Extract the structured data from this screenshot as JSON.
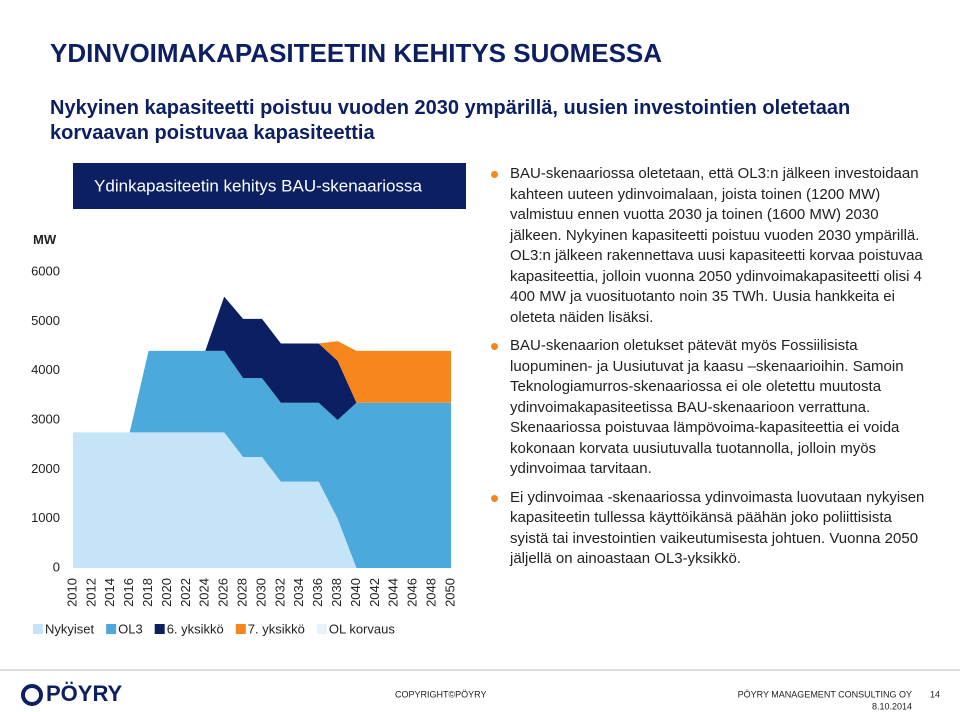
{
  "title": "YDINVOIMAKAPASITEETIN KEHITYS SUOMESSA",
  "subtitle": "Nykyinen kapasiteetti poistuu vuoden 2030 ympärillä, uusien investointien oletetaan korvaavan poistuvaa kapasiteettia",
  "chart_data": {
    "type": "area",
    "stacked": true,
    "title": "Ydinkapasiteetin kehitys BAU-skenaariossa",
    "y_label": "MW",
    "categories": [
      "2010",
      "2012",
      "2014",
      "2016",
      "2018",
      "2020",
      "2022",
      "2024",
      "2026",
      "2028",
      "2030",
      "2032",
      "2034",
      "2036",
      "2038",
      "2040",
      "2042",
      "2044",
      "2046",
      "2048",
      "2050"
    ],
    "series": [
      {
        "name": "Nykyiset",
        "color": "#c6e4f7",
        "values": [
          2750,
          2750,
          2750,
          2750,
          2750,
          2750,
          2750,
          2750,
          2750,
          2250,
          2250,
          1750,
          1750,
          1750,
          1000,
          0,
          0,
          0,
          0,
          0,
          0
        ]
      },
      {
        "name": "OL3",
        "color": "#4ba9db",
        "values": [
          0,
          0,
          0,
          0,
          1650,
          1650,
          1650,
          1650,
          1650,
          1600,
          1600,
          1600,
          1600,
          1600,
          2000,
          3350,
          3350,
          3350,
          3350,
          3350,
          3350
        ]
      },
      {
        "name": "6. yksikkö",
        "color": "#0c1f62",
        "values": [
          0,
          0,
          0,
          0,
          0,
          0,
          0,
          0,
          1100,
          1200,
          1200,
          1200,
          1200,
          1200,
          1200,
          0,
          0,
          0,
          0,
          0,
          0
        ]
      },
      {
        "name": "7. yksikkö",
        "color": "#f7861c",
        "values": [
          0,
          0,
          0,
          0,
          0,
          0,
          0,
          0,
          0,
          0,
          0,
          0,
          0,
          0,
          400,
          1050,
          1050,
          1050,
          1050,
          1050,
          1050
        ]
      },
      {
        "name": "OL korvaus",
        "color": "#e8f2fa",
        "values": [
          0,
          0,
          0,
          0,
          0,
          0,
          0,
          0,
          0,
          0,
          0,
          0,
          0,
          0,
          0,
          0,
          0,
          0,
          0,
          0,
          0
        ]
      }
    ],
    "ylim": [
      0,
      6000
    ],
    "yticks": [
      0,
      1000,
      2000,
      3000,
      4000,
      5000,
      6000
    ]
  },
  "bullets": [
    "BAU-skenaariossa oletetaan, että OL3:n jälkeen investoidaan kahteen uuteen ydinvoimalaan, joista toinen (1200 MW) valmistuu ennen vuotta 2030 ja toinen (1600 MW) 2030 jälkeen. Nykyinen kapasiteetti poistuu vuoden 2030 ympärillä. OL3:n jälkeen rakennettava uusi kapasiteetti korvaa poistuvaa kapasiteettia, jolloin vuonna 2050 ydinvoimakapasiteetti olisi 4 400 MW ja vuosituotanto noin 35 TWh. Uusia hankkeita ei oleteta näiden lisäksi.",
    "BAU-skenaarion oletukset pätevät myös Fossiilisista luopuminen- ja Uusiutuvat ja kaasu –skenaarioihin. Samoin Teknologiamurros-skenaariossa ei ole oletettu muutosta ydinvoimakapasiteetissa BAU-skenaarioon verrattuna. Skenaariossa poistuvaa lämpövoima-kapasiteettia ei voida kokonaan korvata uusiutuvalla tuotannolla, jolloin myös ydinvoimaa tarvitaan.",
    "Ei ydinvoimaa -skenaariossa ydinvoimasta luovutaan nykyisen kapasiteetin tullessa käyttöikänsä päähän joko poliittisista syistä tai investointien vaikeutumisesta johtuen. Vuonna 2050 jäljellä on ainoastaan OL3-yksikkö."
  ],
  "footer": {
    "logo": "PÖYRY",
    "copyright": "COPYRIGHT©PÖYRY",
    "company": "PÖYRY MANAGEMENT CONSULTING OY",
    "page": "14",
    "date": "8.10.2014"
  }
}
